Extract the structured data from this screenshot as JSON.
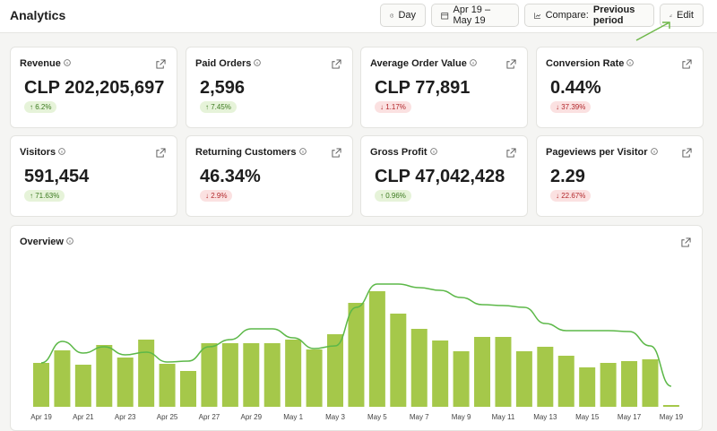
{
  "header": {
    "title": "Analytics",
    "period": "Day",
    "range": "Apr 19 – May 19",
    "compare_label": "Compare:",
    "compare_value": "Previous period",
    "edit": "Edit"
  },
  "metrics": [
    {
      "label": "Revenue",
      "value": "CLP 202,205,697",
      "change": "6.2%",
      "trend": "up"
    },
    {
      "label": "Paid Orders",
      "value": "2,596",
      "change": "7.45%",
      "trend": "up"
    },
    {
      "label": "Average Order Value",
      "value": "CLP 77,891",
      "change": "1.17%",
      "trend": "down"
    },
    {
      "label": "Conversion Rate",
      "value": "0.44%",
      "change": "37.39%",
      "trend": "down"
    },
    {
      "label": "Visitors",
      "value": "591,454",
      "change": "71.63%",
      "trend": "up"
    },
    {
      "label": "Returning Customers",
      "value": "46.34%",
      "change": "2.9%",
      "trend": "down"
    },
    {
      "label": "Gross Profit",
      "value": "CLP 47,042,428",
      "change": "0.96%",
      "trend": "up"
    },
    {
      "label": "Pageviews per Visitor",
      "value": "2.29",
      "change": "22.67%",
      "trend": "down"
    }
  ],
  "overview": {
    "title": "Overview",
    "chart_data": {
      "type": "bar",
      "categories": [
        "Apr 19",
        null,
        "Apr 21",
        null,
        "Apr 23",
        null,
        "Apr 25",
        null,
        "Apr 27",
        null,
        "Apr 29",
        null,
        "May 1",
        null,
        "May 3",
        null,
        "May 5",
        null,
        "May 7",
        null,
        "May 9",
        null,
        "May 11",
        null,
        "May 13",
        null,
        "May 15",
        null,
        "May 17",
        null,
        "May 19"
      ],
      "series": [
        {
          "type": "bar",
          "color": "#a5c84a",
          "values": [
            49,
            63,
            47,
            69,
            55,
            75,
            48,
            40,
            71,
            71,
            71,
            71,
            75,
            64,
            81,
            116,
            129,
            104,
            87,
            74,
            62,
            78,
            78,
            62,
            67,
            57,
            44,
            49,
            51,
            53,
            2
          ]
        },
        {
          "type": "line",
          "color": "#5cb848",
          "values": [
            49,
            73,
            60,
            67,
            58,
            61,
            50,
            51,
            67,
            75,
            87,
            87,
            77,
            65,
            68,
            111,
            137,
            137,
            133,
            130,
            122,
            114,
            113,
            111,
            93,
            85,
            85,
            85,
            84,
            68,
            23
          ]
        }
      ],
      "ylim": [
        0,
        140
      ]
    }
  }
}
